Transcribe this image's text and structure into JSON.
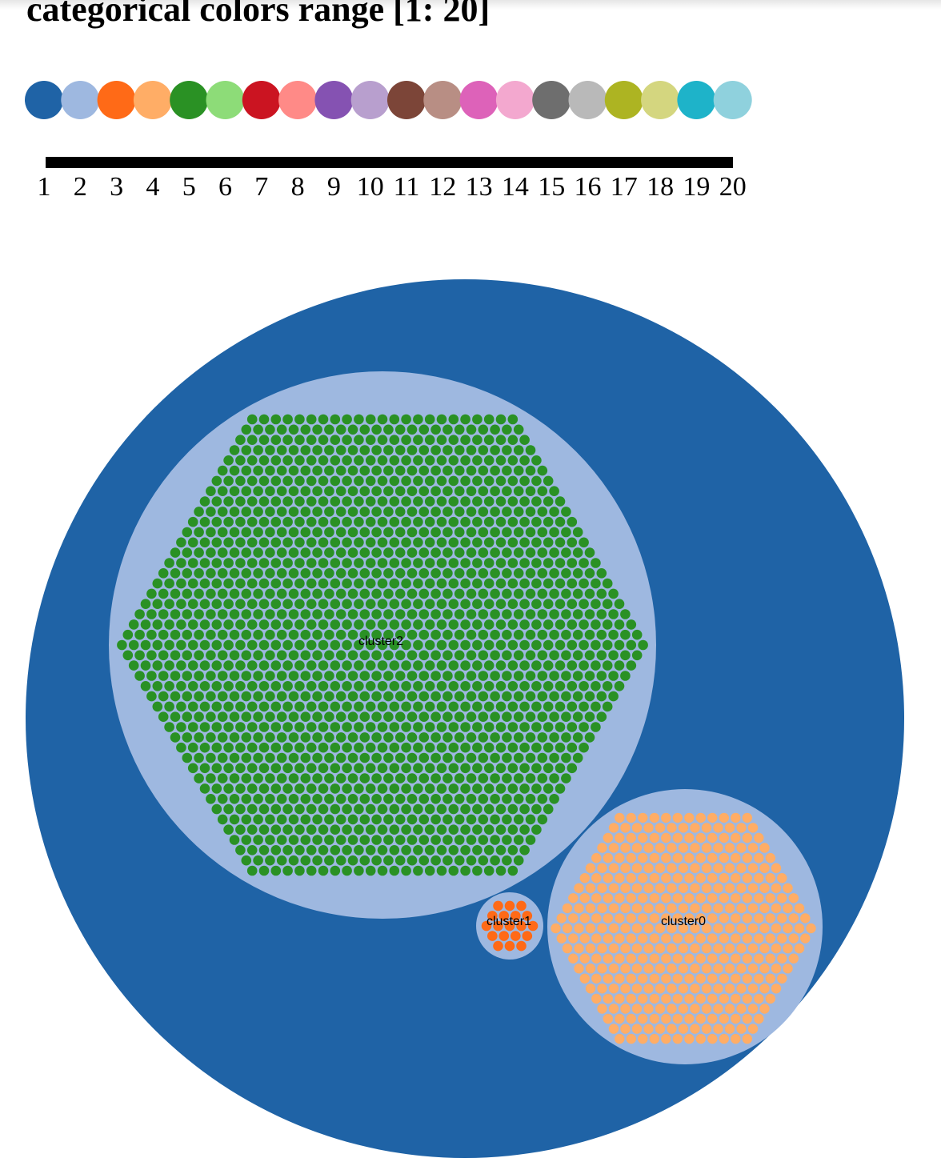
{
  "title": "categorical colors range [1: 20]",
  "palette": {
    "colors": [
      "#1f63a6",
      "#9eb8e0",
      "#ff6a17",
      "#ffad66",
      "#2a9124",
      "#8ddc78",
      "#cb1421",
      "#ff8a87",
      "#8552b2",
      "#b89fce",
      "#7c4538",
      "#b88e84",
      "#dd62b9",
      "#f3a8cf",
      "#6e6e6e",
      "#b9b9b9",
      "#adb422",
      "#d4d67f",
      "#1eb3c9",
      "#8fd1dd"
    ],
    "scale_labels": [
      "1",
      "2",
      "3",
      "4",
      "5",
      "6",
      "7",
      "8",
      "9",
      "10",
      "11",
      "12",
      "13",
      "14",
      "15",
      "16",
      "17",
      "18",
      "19",
      "20"
    ]
  },
  "chart_data": {
    "type": "circle-packing",
    "root": {
      "color": "#1f63a6",
      "children": [
        {
          "label": "cluster2",
          "color": "#9eb8e0",
          "dot_color": "#2a9124"
        },
        {
          "label": "cluster1",
          "color": "#9eb8e0",
          "dot_color": "#ff6a17"
        },
        {
          "label": "cluster0",
          "color": "#9eb8e0",
          "dot_color": "#ffad66"
        }
      ]
    }
  }
}
